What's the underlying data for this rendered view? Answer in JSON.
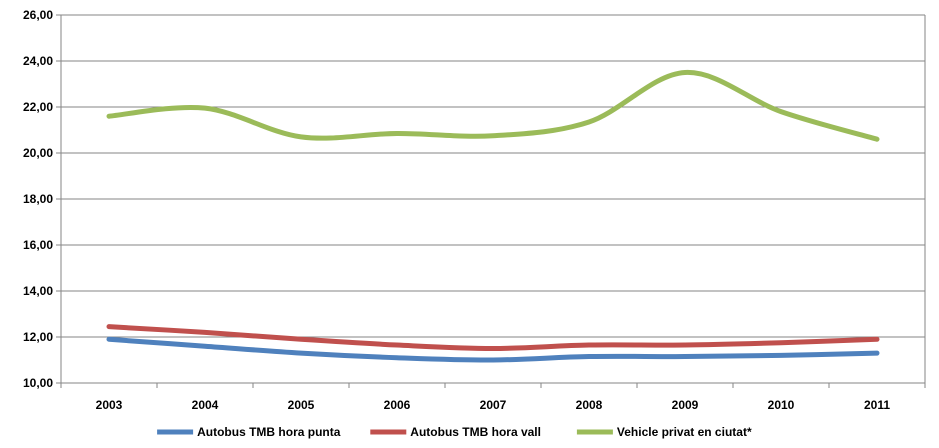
{
  "chart_data": {
    "type": "line",
    "categories": [
      "2003",
      "2004",
      "2005",
      "2006",
      "2007",
      "2008",
      "2009",
      "2010",
      "2011"
    ],
    "series": [
      {
        "name": "Autobus TMB hora punta",
        "color": "#4f81bd",
        "values": [
          11.9,
          11.6,
          11.3,
          11.1,
          11.0,
          11.15,
          11.15,
          11.2,
          11.3
        ]
      },
      {
        "name": "Autobus TMB hora vall",
        "color": "#c0504d",
        "values": [
          12.45,
          12.2,
          11.9,
          11.65,
          11.5,
          11.65,
          11.65,
          11.75,
          11.9
        ]
      },
      {
        "name": "Vehicle privat en ciutat*",
        "color": "#9bbb59",
        "values": [
          21.6,
          21.95,
          20.7,
          20.85,
          20.75,
          21.35,
          23.5,
          21.8,
          20.6
        ]
      }
    ],
    "ylim": [
      10,
      26
    ],
    "yticks": [
      "10,00",
      "12,00",
      "14,00",
      "16,00",
      "18,00",
      "20,00",
      "22,00",
      "24,00",
      "26,00"
    ],
    "xlabel": "",
    "ylabel": "",
    "title": "",
    "grid": true,
    "legend": "bottom"
  }
}
